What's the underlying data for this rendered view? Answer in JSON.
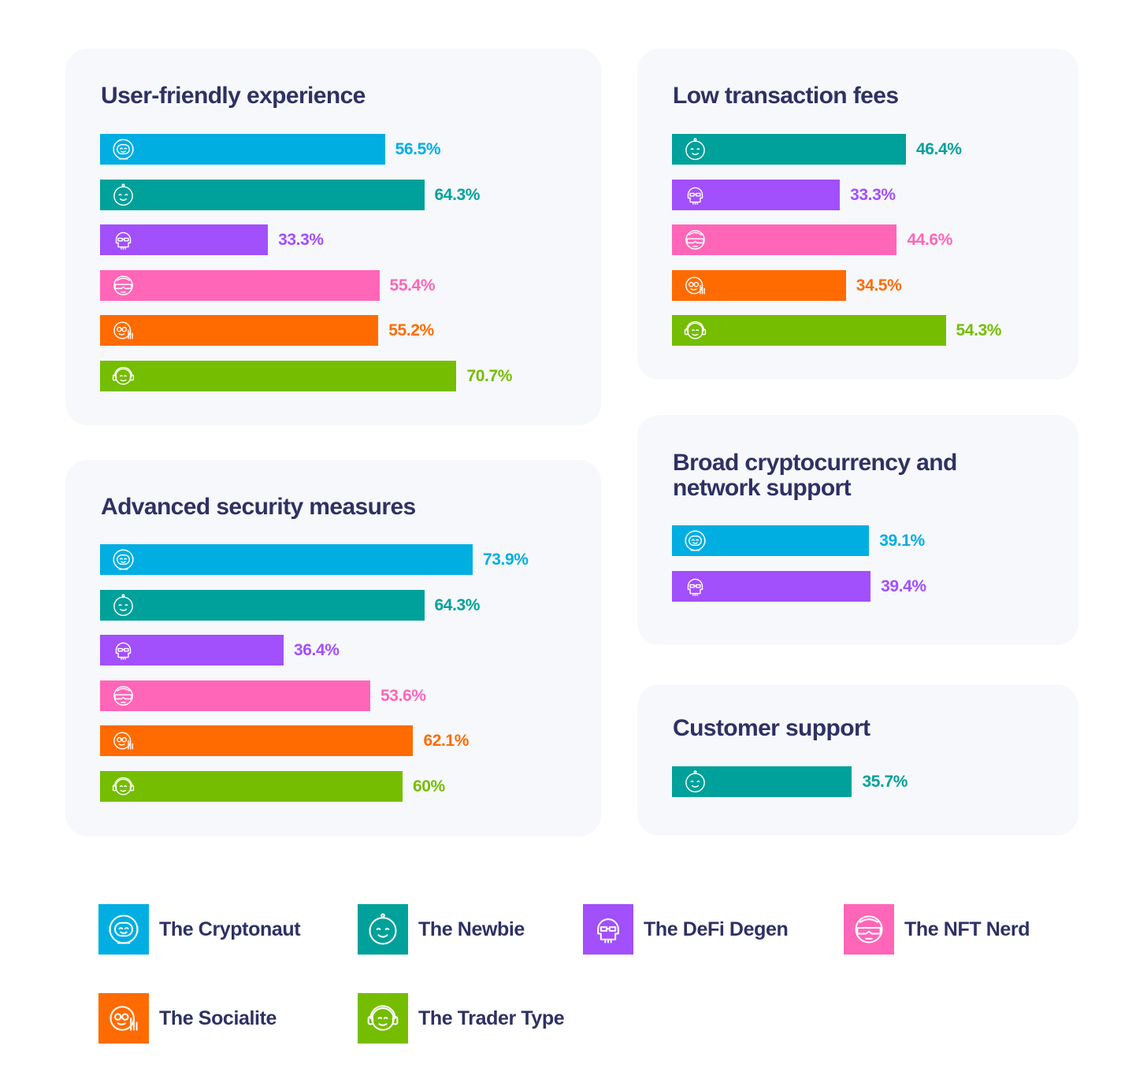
{
  "personas": {
    "cryptonaut": {
      "label": "The Cryptonaut",
      "color": "#00aee2",
      "icon": "astronaut-icon"
    },
    "newbie": {
      "label": "The Newbie",
      "color": "#00a19a",
      "icon": "baby-face-icon"
    },
    "defi": {
      "label": "The DeFi Degen",
      "color": "#a24ffc",
      "icon": "skull-sunglasses-icon"
    },
    "nft": {
      "label": "The NFT Nerd",
      "color": "#ff66b8",
      "icon": "vr-goggles-face-icon"
    },
    "socialite": {
      "label": "The Socialite",
      "color": "#ff6b00",
      "icon": "waving-face-icon"
    },
    "trader": {
      "label": "The Trader Type",
      "color": "#75bd00",
      "icon": "headset-face-icon"
    }
  },
  "chart_data": [
    {
      "type": "bar",
      "title": "User-friendly experience",
      "categories": [
        "The Cryptonaut",
        "The Newbie",
        "The DeFi Degen",
        "The NFT Nerd",
        "The Socialite",
        "The Trader Type"
      ],
      "keys": [
        "cryptonaut",
        "newbie",
        "defi",
        "nft",
        "socialite",
        "trader"
      ],
      "values": [
        56.5,
        64.3,
        33.3,
        55.4,
        55.2,
        70.7
      ],
      "labels": [
        "56.5%",
        "64.3%",
        "33.3%",
        "55.4%",
        "55.2%",
        "70.7%"
      ]
    },
    {
      "type": "bar",
      "title": "Low transaction fees",
      "categories": [
        "The Newbie",
        "The DeFi Degen",
        "The NFT Nerd",
        "The Socialite",
        "The Trader Type"
      ],
      "keys": [
        "newbie",
        "defi",
        "nft",
        "socialite",
        "trader"
      ],
      "values": [
        46.4,
        33.3,
        44.6,
        34.5,
        54.3
      ],
      "labels": [
        "46.4%",
        "33.3%",
        "44.6%",
        "34.5%",
        "54.3%"
      ]
    },
    {
      "type": "bar",
      "title": "Advanced security measures",
      "categories": [
        "The Cryptonaut",
        "The Newbie",
        "The DeFi Degen",
        "The NFT Nerd",
        "The Socialite",
        "The Trader Type"
      ],
      "keys": [
        "cryptonaut",
        "newbie",
        "defi",
        "nft",
        "socialite",
        "trader"
      ],
      "values": [
        73.9,
        64.3,
        36.4,
        53.6,
        62.1,
        60
      ],
      "labels": [
        "73.9%",
        "64.3%",
        "36.4%",
        "53.6%",
        "62.1%",
        "60%"
      ]
    },
    {
      "type": "bar",
      "title": "Broad cryptocurrency and network support",
      "categories": [
        "The Cryptonaut",
        "The DeFi Degen"
      ],
      "keys": [
        "cryptonaut",
        "defi"
      ],
      "values": [
        39.1,
        39.4
      ],
      "labels": [
        "39.1%",
        "39.4%"
      ]
    },
    {
      "type": "bar",
      "title": "Customer support",
      "categories": [
        "The Newbie"
      ],
      "keys": [
        "newbie"
      ],
      "values": [
        35.7
      ],
      "labels": [
        "35.7%"
      ]
    }
  ],
  "legend": [
    {
      "key": "cryptonaut"
    },
    {
      "key": "newbie"
    },
    {
      "key": "defi"
    },
    {
      "key": "nft"
    },
    {
      "key": "socialite"
    },
    {
      "key": "trader"
    }
  ]
}
